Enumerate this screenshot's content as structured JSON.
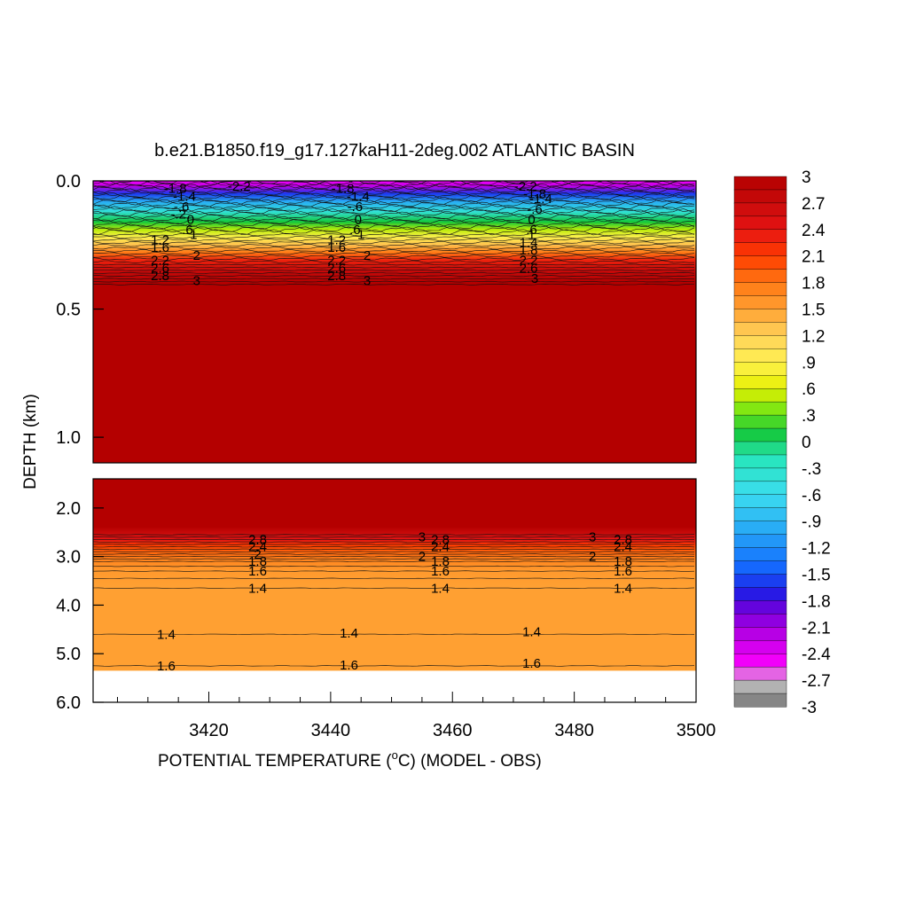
{
  "chart_data": {
    "type": "heatmap",
    "title": "b.e21.B1850.f19_g17.127kaH11-2deg.002 ATLANTIC BASIN",
    "xlabel": "POTENTIAL TEMPERATURE (",
    "xlabel_unit": "C) (MODEL - OBS)",
    "xlabel_degree": "o",
    "ylabel": "DEPTH (km)",
    "xlim": [
      3401,
      3500
    ],
    "x_ticks": [
      3420,
      3440,
      3460,
      3480,
      3500
    ],
    "upper_panel": {
      "ylim": [
        0.0,
        1.1
      ],
      "y_ticks": [
        "0.0",
        "0.5",
        "1.0"
      ],
      "y_tick_values": [
        0.0,
        0.5,
        1.0
      ]
    },
    "lower_panel": {
      "ylim": [
        1.4,
        6.0
      ],
      "y_ticks": [
        "2.0",
        "3.0",
        "4.0",
        "5.0",
        "6.0"
      ],
      "y_tick_values": [
        2.0,
        3.0,
        4.0,
        5.0,
        6.0
      ],
      "data_bottom_depth": 5.35
    },
    "colorbar": {
      "labels": [
        "3",
        "2.7",
        "2.4",
        "2.1",
        "1.8",
        "1.5",
        "1.2",
        ".9",
        ".6",
        ".3",
        "0",
        "-.3",
        "-.6",
        "-.9",
        "-1.2",
        "-1.5",
        "-1.8",
        "-2.1",
        "-2.4",
        "-2.7",
        "-3"
      ],
      "min": -3,
      "max": 3
    },
    "upper_profile": [
      {
        "depth": 0.0,
        "value": -2.5
      },
      {
        "depth": 0.02,
        "value": -2.2
      },
      {
        "depth": 0.05,
        "value": -1.6
      },
      {
        "depth": 0.08,
        "value": -1.0
      },
      {
        "depth": 0.12,
        "value": -0.4
      },
      {
        "depth": 0.16,
        "value": 0.1
      },
      {
        "depth": 0.19,
        "value": 0.5
      },
      {
        "depth": 0.22,
        "value": 0.9
      },
      {
        "depth": 0.25,
        "value": 1.3
      },
      {
        "depth": 0.28,
        "value": 1.8
      },
      {
        "depth": 0.31,
        "value": 2.3
      },
      {
        "depth": 0.35,
        "value": 2.7
      },
      {
        "depth": 0.4,
        "value": 3.0
      },
      {
        "depth": 1.1,
        "value": 3.0
      }
    ],
    "lower_profile": [
      {
        "depth": 1.4,
        "value": 3.0
      },
      {
        "depth": 2.55,
        "value": 3.0
      },
      {
        "depth": 2.7,
        "value": 2.7
      },
      {
        "depth": 2.85,
        "value": 2.4
      },
      {
        "depth": 3.0,
        "value": 2.1
      },
      {
        "depth": 3.15,
        "value": 1.9
      },
      {
        "depth": 3.35,
        "value": 1.7
      },
      {
        "depth": 3.6,
        "value": 1.55
      },
      {
        "depth": 4.0,
        "value": 1.5
      },
      {
        "depth": 5.35,
        "value": 1.5
      }
    ],
    "contour_labels_upper": [
      {
        "text": "-2.2",
        "x": 3425.0,
        "depth": 0.02
      },
      {
        "text": "-1.8",
        "x": 3414.5,
        "depth": 0.03
      },
      {
        "text": "-1.4",
        "x": 3416.0,
        "depth": 0.06
      },
      {
        "text": "-.6",
        "x": 3415.5,
        "depth": 0.1
      },
      {
        "text": "-.2",
        "x": 3415.0,
        "depth": 0.13
      },
      {
        "text": "0",
        "x": 3417.0,
        "depth": 0.15
      },
      {
        "text": ".6",
        "x": 3416.5,
        "depth": 0.19
      },
      {
        "text": "1",
        "x": 3417.5,
        "depth": 0.21
      },
      {
        "text": "1.2",
        "x": 3412.0,
        "depth": 0.23
      },
      {
        "text": "1.6",
        "x": 3412.0,
        "depth": 0.26
      },
      {
        "text": "2",
        "x": 3418.0,
        "depth": 0.29
      },
      {
        "text": "2.2",
        "x": 3412.0,
        "depth": 0.31
      },
      {
        "text": "2.6",
        "x": 3412.0,
        "depth": 0.34
      },
      {
        "text": "2.8",
        "x": 3412.0,
        "depth": 0.37
      },
      {
        "text": "3",
        "x": 3418.0,
        "depth": 0.39
      },
      {
        "text": "-1.8",
        "x": 3442.0,
        "depth": 0.03
      },
      {
        "text": "-1.4",
        "x": 3444.5,
        "depth": 0.06
      },
      {
        "text": "-.6",
        "x": 3444.0,
        "depth": 0.1
      },
      {
        "text": "0",
        "x": 3444.5,
        "depth": 0.15
      },
      {
        "text": ".6",
        "x": 3444.0,
        "depth": 0.19
      },
      {
        "text": "1",
        "x": 3445.0,
        "depth": 0.21
      },
      {
        "text": "1.2",
        "x": 3441.0,
        "depth": 0.23
      },
      {
        "text": "1.6",
        "x": 3441.0,
        "depth": 0.26
      },
      {
        "text": "2",
        "x": 3446.0,
        "depth": 0.29
      },
      {
        "text": "2.2",
        "x": 3441.0,
        "depth": 0.31
      },
      {
        "text": "2.6",
        "x": 3441.0,
        "depth": 0.34
      },
      {
        "text": "2.8",
        "x": 3441.0,
        "depth": 0.37
      },
      {
        "text": "3",
        "x": 3446.0,
        "depth": 0.39
      },
      {
        "text": "-2.2",
        "x": 3472.0,
        "depth": 0.02
      },
      {
        "text": "-1.8",
        "x": 3473.5,
        "depth": 0.05
      },
      {
        "text": "-1.4",
        "x": 3474.5,
        "depth": 0.07
      },
      {
        "text": "-.6",
        "x": 3473.5,
        "depth": 0.11
      },
      {
        "text": "0",
        "x": 3473.0,
        "depth": 0.15
      },
      {
        "text": ".6",
        "x": 3473.0,
        "depth": 0.19
      },
      {
        "text": "1",
        "x": 3473.0,
        "depth": 0.21
      },
      {
        "text": "1.4",
        "x": 3472.5,
        "depth": 0.24
      },
      {
        "text": "1.8",
        "x": 3472.5,
        "depth": 0.27
      },
      {
        "text": "2.2",
        "x": 3472.5,
        "depth": 0.31
      },
      {
        "text": "2.6",
        "x": 3472.5,
        "depth": 0.34
      },
      {
        "text": "3",
        "x": 3473.5,
        "depth": 0.38
      }
    ],
    "contour_labels_lower": [
      {
        "text": "2.8",
        "x": 3428.0,
        "depth": 2.65
      },
      {
        "text": "2.4",
        "x": 3428.0,
        "depth": 2.8
      },
      {
        "text": "2",
        "x": 3428.0,
        "depth": 2.95
      },
      {
        "text": "1.8",
        "x": 3428.0,
        "depth": 3.1
      },
      {
        "text": "1.6",
        "x": 3428.0,
        "depth": 3.3
      },
      {
        "text": "1.4",
        "x": 3428.0,
        "depth": 3.65
      },
      {
        "text": "3",
        "x": 3455.0,
        "depth": 2.6
      },
      {
        "text": "2.8",
        "x": 3458.0,
        "depth": 2.65
      },
      {
        "text": "2.4",
        "x": 3458.0,
        "depth": 2.8
      },
      {
        "text": "2",
        "x": 3455.0,
        "depth": 3.0
      },
      {
        "text": "1.8",
        "x": 3458.0,
        "depth": 3.1
      },
      {
        "text": "1.6",
        "x": 3458.0,
        "depth": 3.3
      },
      {
        "text": "1.4",
        "x": 3458.0,
        "depth": 3.65
      },
      {
        "text": "3",
        "x": 3483.0,
        "depth": 2.6
      },
      {
        "text": "2.8",
        "x": 3488.0,
        "depth": 2.65
      },
      {
        "text": "2.4",
        "x": 3488.0,
        "depth": 2.8
      },
      {
        "text": "2",
        "x": 3483.0,
        "depth": 3.0
      },
      {
        "text": "1.8",
        "x": 3488.0,
        "depth": 3.1
      },
      {
        "text": "1.6",
        "x": 3488.0,
        "depth": 3.3
      },
      {
        "text": "1.4",
        "x": 3488.0,
        "depth": 3.65
      },
      {
        "text": "1.4",
        "x": 3413.0,
        "depth": 4.6
      },
      {
        "text": "1.4",
        "x": 3443.0,
        "depth": 4.58
      },
      {
        "text": "1.4",
        "x": 3473.0,
        "depth": 4.55
      },
      {
        "text": "1.6",
        "x": 3413.0,
        "depth": 5.25
      },
      {
        "text": "1.6",
        "x": 3443.0,
        "depth": 5.23
      },
      {
        "text": "1.6",
        "x": 3473.0,
        "depth": 5.2
      }
    ]
  }
}
